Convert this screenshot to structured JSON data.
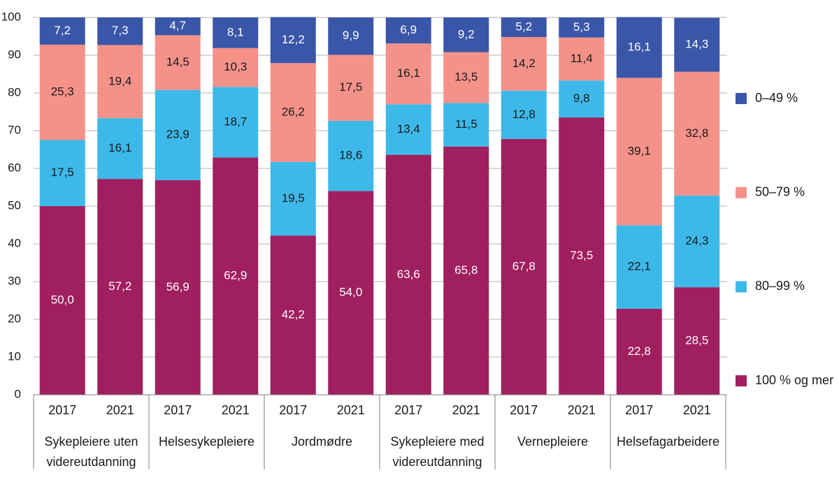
{
  "chart_data": {
    "type": "stacked-bar",
    "categories": [
      "2017",
      "2021",
      "2017",
      "2021",
      "2017",
      "2021",
      "2017",
      "2021",
      "2017",
      "2021",
      "2017",
      "2021"
    ],
    "groups": [
      "Sykepleiere uten videreutdanning",
      "Helsesykepleiere",
      "Jordmødre",
      "Sykepleiere med videreutdanning",
      "Vernepleiere",
      "Helsefagarbeidere"
    ],
    "series": [
      {
        "name": "100 % og mer",
        "color": "#a01f5f",
        "label_color": "#ffffff",
        "values": [
          50.0,
          57.2,
          56.9,
          62.9,
          42.2,
          54.0,
          63.6,
          65.8,
          67.8,
          73.5,
          22.8,
          28.5
        ],
        "value_labels": [
          "50,0",
          "57,2",
          "56,9",
          "62,9",
          "42,2",
          "54,0",
          "63,6",
          "65,8",
          "67,8",
          "73,5",
          "22,8",
          "28,5"
        ]
      },
      {
        "name": "80–99 %",
        "color": "#3db9e9",
        "label_color": "#1a1a1a",
        "values": [
          17.5,
          16.1,
          23.9,
          18.7,
          19.5,
          18.6,
          13.4,
          11.5,
          12.8,
          9.8,
          22.1,
          24.3
        ],
        "value_labels": [
          "17,5",
          "16,1",
          "23,9",
          "18,7",
          "19,5",
          "18,6",
          "13,4",
          "11,5",
          "12,8",
          "9,8",
          "22,1",
          "24,3"
        ]
      },
      {
        "name": "50–79 %",
        "color": "#f4928a",
        "label_color": "#1a1a1a",
        "values": [
          25.3,
          19.4,
          14.5,
          10.3,
          26.2,
          17.5,
          16.1,
          13.5,
          14.2,
          11.4,
          39.1,
          32.8
        ],
        "value_labels": [
          "25,3",
          "19,4",
          "14,5",
          "10,3",
          "26,2",
          "17,5",
          "16,1",
          "13,5",
          "14,2",
          "11,4",
          "39,1",
          "32,8"
        ]
      },
      {
        "name": "0–49 %",
        "color": "#3a56a8",
        "label_color": "#ffffff",
        "values": [
          7.2,
          7.3,
          4.7,
          8.1,
          12.2,
          9.9,
          6.9,
          9.2,
          5.2,
          5.3,
          16.1,
          14.3
        ],
        "value_labels": [
          "7,2",
          "7,3",
          "4,7",
          "8,1",
          "12,2",
          "9,9",
          "6,9",
          "9,2",
          "5,2",
          "5,3",
          "16,1",
          "14,3"
        ]
      }
    ],
    "ylim": [
      0,
      100
    ],
    "yticks": [
      0,
      10,
      20,
      30,
      40,
      50,
      60,
      70,
      80,
      90,
      100
    ],
    "grid": true,
    "legend": "right"
  }
}
